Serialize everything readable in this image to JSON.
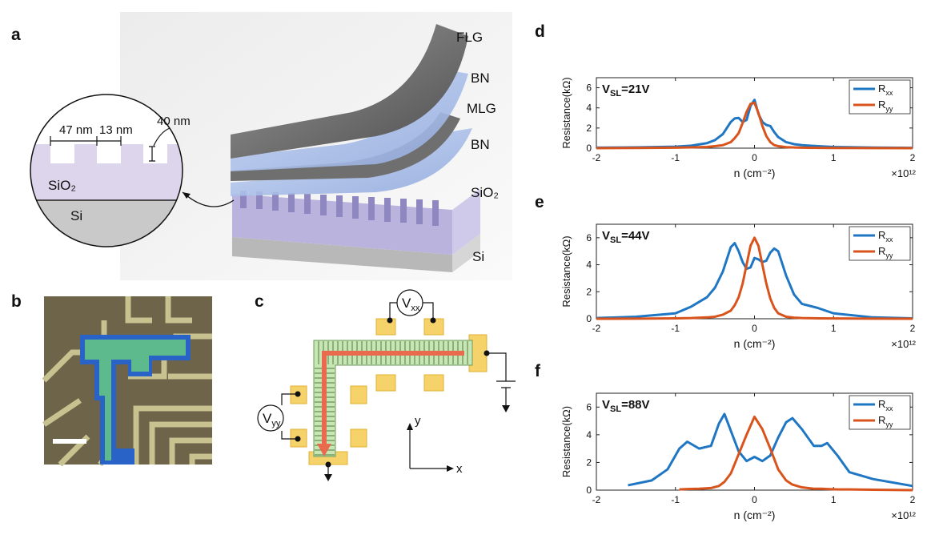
{
  "panel_a": {
    "label": "a",
    "layers": [
      "FLG",
      "BN",
      "MLG",
      "BN",
      "SiO₂",
      "Si"
    ],
    "inset": {
      "width1": "47 nm",
      "width2": "13 nm",
      "depth": "40 nm",
      "oxide": "SiO₂",
      "substrate": "Si"
    }
  },
  "panel_b": {
    "label": "b"
  },
  "panel_c": {
    "label": "c",
    "vxx": {
      "base": "V",
      "sub": "xx"
    },
    "vyy": {
      "base": "V",
      "sub": "yy"
    },
    "axis_x": "x",
    "axis_y": "y"
  },
  "chart_data": [
    {
      "type": "line",
      "label": "d",
      "annotation": {
        "base": "V",
        "sub": "SL",
        "rest": "=21V"
      },
      "xlabel": "n (cm⁻²)",
      "x_multiplier": "×10¹²",
      "ylabel": "Resistance(kΩ)",
      "xlim": [
        -2,
        2
      ],
      "xticks": [
        -2,
        -1,
        0,
        1,
        2
      ],
      "ylim": [
        0,
        7
      ],
      "yticks": [
        0,
        2,
        4,
        6
      ],
      "legend": "upper right",
      "x": [
        -2,
        -1.5,
        -1,
        -0.8,
        -0.6,
        -0.5,
        -0.4,
        -0.3,
        -0.25,
        -0.2,
        -0.15,
        -0.1,
        -0.05,
        0,
        0.05,
        0.1,
        0.15,
        0.2,
        0.25,
        0.3,
        0.4,
        0.5,
        0.6,
        0.8,
        1,
        1.5,
        2
      ],
      "series": [
        {
          "name": "R",
          "subscript": "xx",
          "color": "#1f77c4",
          "values": [
            0.05,
            0.08,
            0.15,
            0.25,
            0.5,
            0.8,
            1.4,
            2.6,
            2.95,
            3.0,
            2.6,
            2.8,
            4.2,
            4.8,
            3.4,
            2.6,
            2.3,
            2.2,
            1.6,
            1.1,
            0.6,
            0.4,
            0.3,
            0.2,
            0.12,
            0.06,
            0.03
          ]
        },
        {
          "name": "R",
          "subscript": "yy",
          "color": "#d9541c",
          "values": [
            0,
            0.02,
            0.05,
            0.08,
            0.12,
            0.2,
            0.3,
            0.6,
            1.0,
            1.5,
            2.5,
            3.6,
            4.4,
            4.5,
            3.5,
            2.2,
            1.2,
            0.6,
            0.3,
            0.2,
            0.1,
            0.07,
            0.05,
            0.03,
            0.02,
            0.01,
            0
          ]
        }
      ]
    },
    {
      "type": "line",
      "label": "e",
      "annotation": {
        "base": "V",
        "sub": "SL",
        "rest": "=44V"
      },
      "xlabel": "n (cm⁻²)",
      "x_multiplier": "×10¹²",
      "ylabel": "Resistance(kΩ)",
      "xlim": [
        -2,
        2
      ],
      "xticks": [
        -2,
        -1,
        0,
        1,
        2
      ],
      "ylim": [
        0,
        7
      ],
      "yticks": [
        0,
        2,
        4,
        6
      ],
      "legend": "upper right",
      "x": [
        -2,
        -1.5,
        -1,
        -0.8,
        -0.6,
        -0.5,
        -0.4,
        -0.3,
        -0.25,
        -0.2,
        -0.15,
        -0.1,
        -0.05,
        0,
        0.05,
        0.1,
        0.15,
        0.2,
        0.25,
        0.3,
        0.4,
        0.5,
        0.6,
        0.8,
        1,
        1.5,
        2
      ],
      "series": [
        {
          "name": "R",
          "subscript": "xx",
          "color": "#1f77c4",
          "values": [
            0.05,
            0.15,
            0.4,
            0.9,
            1.6,
            2.3,
            3.5,
            5.3,
            5.6,
            5.0,
            4.2,
            3.7,
            3.8,
            4.5,
            4.4,
            4.2,
            4.3,
            4.9,
            5.2,
            5.0,
            3.2,
            1.8,
            1.1,
            0.8,
            0.4,
            0.1,
            0.03
          ]
        },
        {
          "name": "R",
          "subscript": "yy",
          "color": "#d9541c",
          "values": [
            0,
            0.01,
            0.03,
            0.05,
            0.1,
            0.15,
            0.3,
            0.6,
            1.0,
            1.6,
            2.6,
            4.0,
            5.4,
            6.0,
            5.4,
            4.0,
            2.6,
            1.5,
            0.8,
            0.4,
            0.15,
            0.08,
            0.05,
            0.03,
            0.02,
            0.01,
            0
          ]
        }
      ]
    },
    {
      "type": "line",
      "label": "f",
      "annotation": {
        "base": "V",
        "sub": "SL",
        "rest": "=88V"
      },
      "xlabel": "n (cm⁻²)",
      "x_multiplier": "×10¹²",
      "ylabel": "Resistance(kΩ)",
      "xlim": [
        -2,
        2
      ],
      "xticks": [
        -2,
        -1,
        0,
        1,
        2
      ],
      "ylim": [
        0,
        7
      ],
      "yticks": [
        0,
        2,
        4,
        6
      ],
      "legend": "upper right",
      "x": [
        -2,
        -1.6,
        -1.3,
        -1.1,
        -0.95,
        -0.85,
        -0.7,
        -0.55,
        -0.45,
        -0.38,
        -0.3,
        -0.2,
        -0.1,
        0,
        0.1,
        0.2,
        0.3,
        0.4,
        0.48,
        0.6,
        0.75,
        0.85,
        0.92,
        1.05,
        1.2,
        1.5,
        2
      ],
      "series": [
        {
          "name": "R",
          "subscript": "xx",
          "color": "#1f77c4",
          "values": [
            null,
            0.35,
            0.7,
            1.5,
            3.0,
            3.5,
            3.0,
            3.2,
            4.8,
            5.5,
            4.3,
            2.8,
            2.1,
            2.4,
            2.1,
            2.5,
            3.8,
            4.9,
            5.2,
            4.4,
            3.2,
            3.2,
            3.4,
            2.5,
            1.3,
            0.8,
            0.3
          ]
        },
        {
          "name": "R",
          "subscript": "yy",
          "color": "#d9541c",
          "values": [
            null,
            null,
            null,
            null,
            0.05,
            0.08,
            0.1,
            0.15,
            0.3,
            0.6,
            1.2,
            2.6,
            4.0,
            5.3,
            4.4,
            3.0,
            1.5,
            0.7,
            0.4,
            0.2,
            0.1,
            0.1,
            0.08,
            0.05,
            0.05,
            0.03,
            0
          ]
        }
      ]
    }
  ]
}
